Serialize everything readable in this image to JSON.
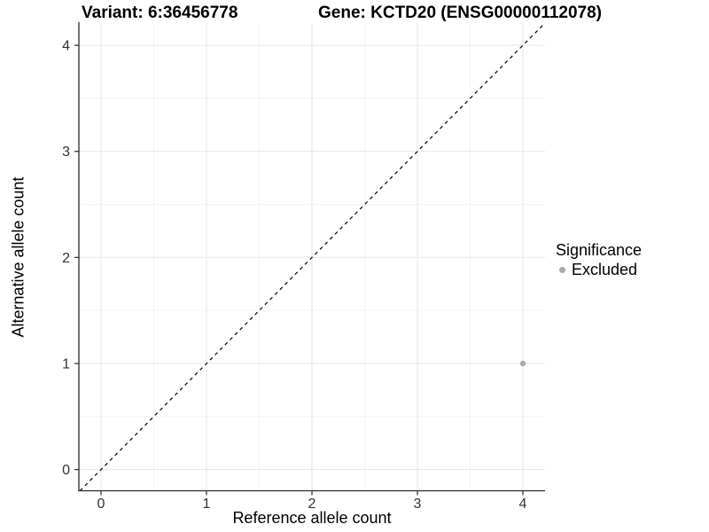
{
  "chart_data": {
    "type": "scatter",
    "title_left": "Variant: 6:36456778",
    "title_right": "Gene: KCTD20 (ENSG00000112078)",
    "xlabel": "Reference allele count",
    "ylabel": "Alternative allele count",
    "xlim": [
      -0.21,
      4.21
    ],
    "ylim": [
      -0.2,
      4.21
    ],
    "x_ticks": [
      0,
      1,
      2,
      3,
      4
    ],
    "y_ticks": [
      0,
      1,
      2,
      3,
      4
    ],
    "x_minor_ticks": [
      0.5,
      1.5,
      2.5,
      3.5
    ],
    "y_minor_ticks": [
      0.5,
      1.5,
      2.5,
      3.5
    ],
    "grid": true,
    "points": [
      {
        "x": 4,
        "y": 1,
        "series": "Excluded"
      }
    ],
    "identity_line": {
      "style": "dashed",
      "color": "#000000"
    },
    "colors": {
      "point": "#aaaaaa",
      "axis_line": "#2a2a2a",
      "tick_label": "#333333",
      "grid_major": "#e8e8e8",
      "grid_minor": "#f3f3f3"
    },
    "legend": {
      "title": "Significance",
      "position": "right",
      "items": [
        {
          "label": "Excluded",
          "color": "#aaaaaa"
        }
      ]
    }
  }
}
